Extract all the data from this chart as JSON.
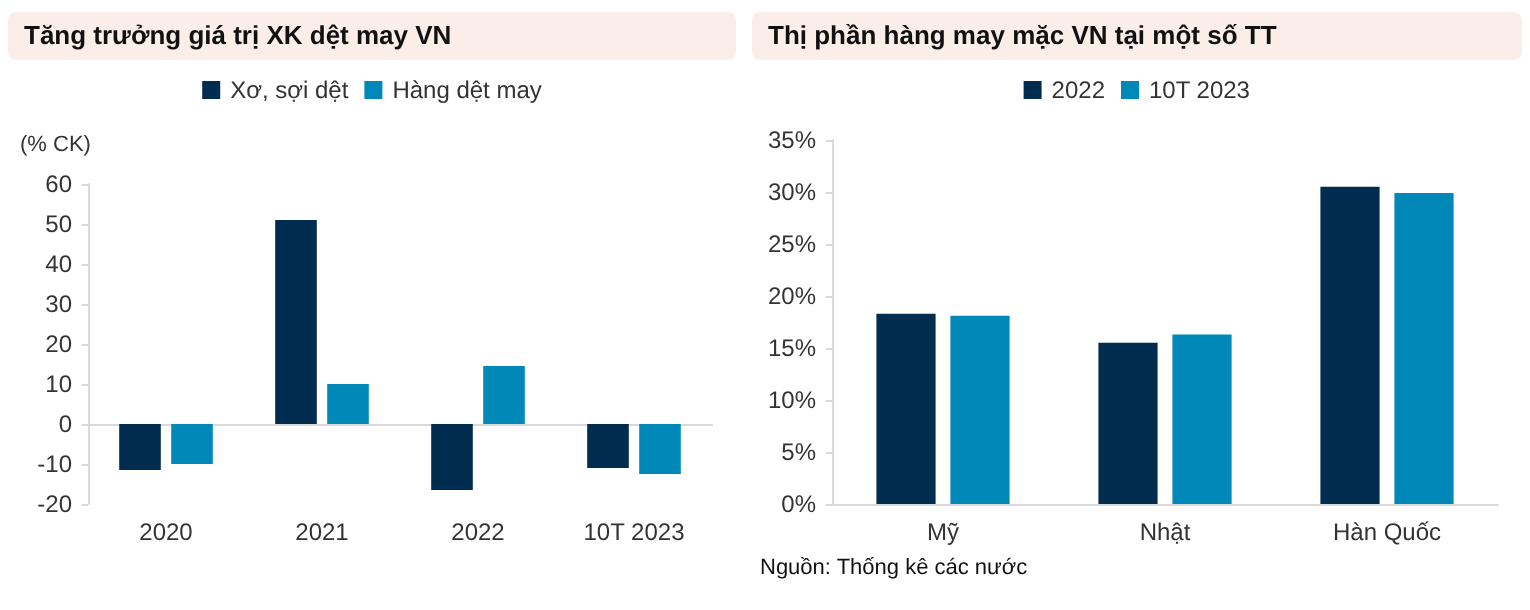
{
  "chart_data": [
    {
      "type": "bar",
      "title": "Tăng trưởng giá trị XK dệt may VN",
      "ylabel": "(% CK)",
      "categories": [
        "2020",
        "2021",
        "2022",
        "10T 2023"
      ],
      "series": [
        {
          "name": "Xơ, sợi dệt",
          "color": "#002d4f",
          "values": [
            -11.5,
            51,
            -16.5,
            -11
          ]
        },
        {
          "name": "Hàng dệt may",
          "color": "#0089b8",
          "values": [
            -10,
            10,
            14.5,
            -12.5
          ]
        }
      ],
      "ylim": [
        -20,
        60
      ],
      "yticks": [
        -20,
        -10,
        0,
        10,
        20,
        30,
        40,
        50,
        60
      ],
      "legend": "top"
    },
    {
      "type": "bar",
      "title": "Thị phần hàng may mặc VN tại một số TT",
      "categories": [
        "Mỹ",
        "Nhật",
        "Hàn Quốc"
      ],
      "series": [
        {
          "name": "2022",
          "color": "#002d4f",
          "values": [
            18.3,
            15.5,
            30.5
          ]
        },
        {
          "name": "10T 2023",
          "color": "#0089b8",
          "values": [
            18.1,
            16.3,
            29.9
          ]
        }
      ],
      "ylim": [
        0,
        35
      ],
      "yticks": [
        {
          "value": 0,
          "label": "0%"
        },
        {
          "value": 5,
          "label": "5%"
        },
        {
          "value": 10,
          "label": "10%"
        },
        {
          "value": 15,
          "label": "15%"
        },
        {
          "value": 20,
          "label": "20%"
        },
        {
          "value": 25,
          "label": "25%"
        },
        {
          "value": 30,
          "label": "30%"
        },
        {
          "value": 35,
          "label": "35%"
        }
      ],
      "grid": false,
      "legend": "top",
      "annotations": [
        "Nguồn: Thống kê các nước"
      ]
    }
  ]
}
